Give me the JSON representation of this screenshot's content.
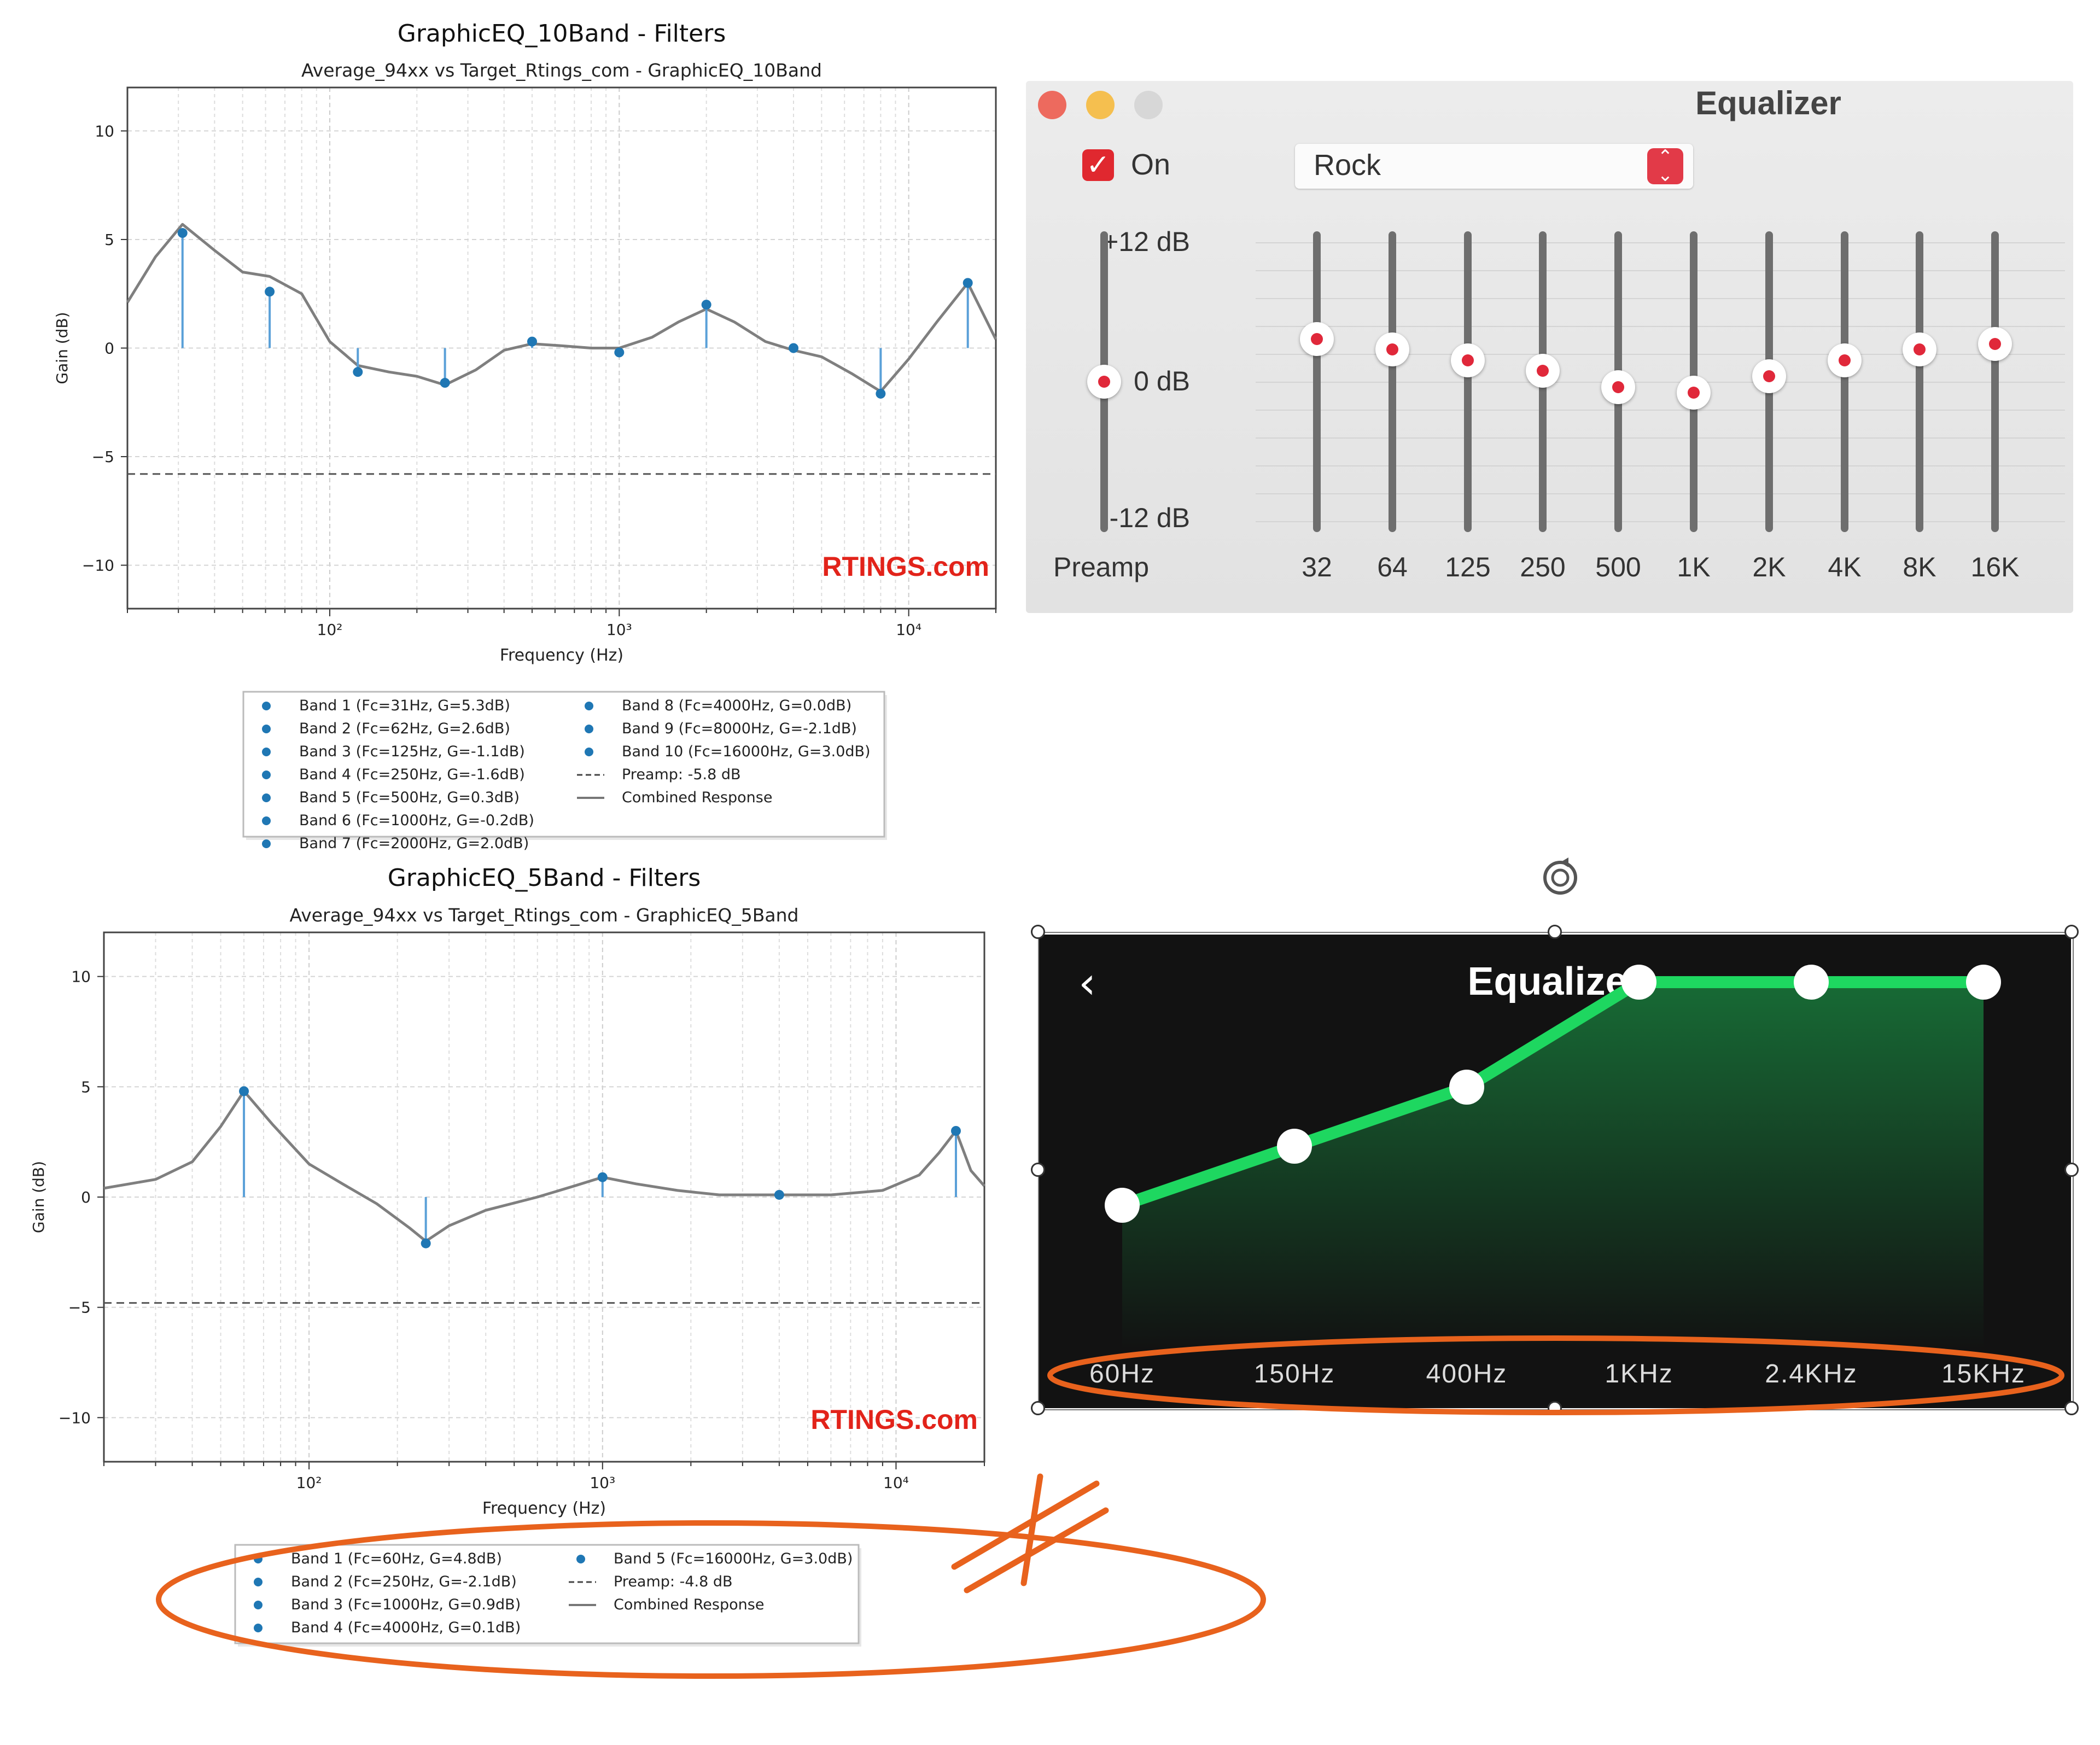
{
  "chart_data": [
    {
      "type": "line",
      "title": "GraphicEQ_10Band - Filters",
      "subtitle": "Average_94xx vs Target_Rtings_com - GraphicEQ_10Band",
      "xlabel": "Frequency (Hz)",
      "ylabel": "Gain (dB)",
      "xscale": "log",
      "xlim": [
        20,
        20000
      ],
      "ylim": [
        -12,
        12
      ],
      "xticks": [
        "10²",
        "10³",
        "10⁴"
      ],
      "yticks": [
        "10",
        "5",
        "0",
        "−5",
        "−10"
      ],
      "grid": true,
      "watermark": "RTINGS.com",
      "preamp": -5.8,
      "bands": [
        {
          "fc": 31,
          "g": 5.3,
          "label": "Band 1 (Fc=31Hz, G=5.3dB)"
        },
        {
          "fc": 62,
          "g": 2.6,
          "label": "Band 2 (Fc=62Hz, G=2.6dB)"
        },
        {
          "fc": 125,
          "g": -1.1,
          "label": "Band 3 (Fc=125Hz, G=-1.1dB)"
        },
        {
          "fc": 250,
          "g": -1.6,
          "label": "Band 4 (Fc=250Hz, G=-1.6dB)"
        },
        {
          "fc": 500,
          "g": 0.3,
          "label": "Band 5 (Fc=500Hz, G=0.3dB)"
        },
        {
          "fc": 1000,
          "g": -0.2,
          "label": "Band 6 (Fc=1000Hz, G=-0.2dB)"
        },
        {
          "fc": 2000,
          "g": 2.0,
          "label": "Band 7 (Fc=2000Hz, G=2.0dB)"
        },
        {
          "fc": 4000,
          "g": 0.0,
          "label": "Band 8 (Fc=4000Hz, G=0.0dB)"
        },
        {
          "fc": 8000,
          "g": -2.1,
          "label": "Band 9 (Fc=8000Hz, G=-2.1dB)"
        },
        {
          "fc": 16000,
          "g": 3.0,
          "label": "Band 10 (Fc=16000Hz, G=3.0dB)"
        }
      ],
      "combined_response": {
        "x": [
          20,
          25,
          31,
          40,
          50,
          62,
          80,
          100,
          125,
          160,
          200,
          250,
          320,
          400,
          500,
          640,
          800,
          1000,
          1300,
          1600,
          2000,
          2500,
          3200,
          4000,
          5000,
          6400,
          8000,
          10000,
          12500,
          16000,
          20000
        ],
        "y": [
          2.1,
          4.2,
          5.7,
          4.5,
          3.5,
          3.3,
          2.5,
          0.3,
          -0.8,
          -1.1,
          -1.3,
          -1.7,
          -1.0,
          -0.1,
          0.2,
          0.1,
          0.0,
          0.0,
          0.5,
          1.2,
          1.8,
          1.2,
          0.3,
          -0.1,
          -0.4,
          -1.2,
          -2.0,
          -0.5,
          1.2,
          3.0,
          0.4
        ]
      },
      "legend": {
        "preamp": "Preamp: -5.8 dB",
        "combined": "Combined Response"
      }
    },
    {
      "type": "line",
      "title": "GraphicEQ_5Band - Filters",
      "subtitle": "Average_94xx vs Target_Rtings_com - GraphicEQ_5Band",
      "xlabel": "Frequency (Hz)",
      "ylabel": "Gain (dB)",
      "xscale": "log",
      "xlim": [
        20,
        20000
      ],
      "ylim": [
        -12,
        12
      ],
      "xticks": [
        "10²",
        "10³",
        "10⁴"
      ],
      "yticks": [
        "10",
        "5",
        "0",
        "−5",
        "−10"
      ],
      "grid": true,
      "watermark": "RTINGS.com",
      "preamp": -4.8,
      "bands": [
        {
          "fc": 60,
          "g": 4.8,
          "label": "Band 1 (Fc=60Hz, G=4.8dB)"
        },
        {
          "fc": 250,
          "g": -2.1,
          "label": "Band 2 (Fc=250Hz, G=-2.1dB)"
        },
        {
          "fc": 1000,
          "g": 0.9,
          "label": "Band 3 (Fc=1000Hz, G=0.9dB)"
        },
        {
          "fc": 4000,
          "g": 0.1,
          "label": "Band 4 (Fc=4000Hz, G=0.1dB)"
        },
        {
          "fc": 16000,
          "g": 3.0,
          "label": "Band 5 (Fc=16000Hz, G=3.0dB)"
        }
      ],
      "combined_response": {
        "x": [
          20,
          30,
          40,
          50,
          60,
          75,
          100,
          130,
          170,
          220,
          250,
          300,
          400,
          600,
          800,
          1000,
          1300,
          1800,
          2500,
          4000,
          6000,
          9000,
          12000,
          14000,
          16000,
          18000,
          20000
        ],
        "y": [
          0.4,
          0.8,
          1.6,
          3.2,
          4.8,
          3.3,
          1.5,
          0.6,
          -0.3,
          -1.4,
          -2.0,
          -1.3,
          -0.6,
          0.0,
          0.5,
          0.9,
          0.6,
          0.3,
          0.1,
          0.1,
          0.1,
          0.3,
          1.0,
          2.0,
          3.0,
          1.2,
          0.5
        ]
      },
      "legend": {
        "preamp": "Preamp: -4.8 dB",
        "combined": "Combined Response"
      }
    },
    {
      "type": "line",
      "title": "Equalizer",
      "categories": [
        "60Hz",
        "150Hz",
        "400Hz",
        "1KHz",
        "2.4KHz",
        "15KHz"
      ],
      "values": [
        0.0,
        0.9,
        1.8,
        3.4,
        3.4,
        3.4
      ],
      "ylim": [
        -6,
        6
      ]
    }
  ],
  "mac_eq": {
    "title": "Equalizer",
    "on_label": "On",
    "on_checked": true,
    "preset": "Rock",
    "db_top": "+12 dB",
    "db_mid": "0 dB",
    "db_bottom": "-12 dB",
    "preamp_label": "Preamp",
    "preamp_value_db": 0,
    "bands": [
      {
        "label": "32",
        "db": 4
      },
      {
        "label": "64",
        "db": 3
      },
      {
        "label": "125",
        "db": 2
      },
      {
        "label": "250",
        "db": 1
      },
      {
        "label": "500",
        "db": -0.5
      },
      {
        "label": "1K",
        "db": -1
      },
      {
        "label": "2K",
        "db": 0.5
      },
      {
        "label": "4K",
        "db": 2
      },
      {
        "label": "8K",
        "db": 3
      },
      {
        "label": "16K",
        "db": 3.5
      }
    ],
    "colors": {
      "close": "#ed6a5e",
      "minimize": "#f5bf4f",
      "zoom": "#d7d7d7",
      "accent": "#e0283a"
    }
  },
  "mobile_eq": {
    "title": "Equalizer",
    "back_icon": "chevron-left-icon",
    "rotate_icon": "rotate-icon",
    "accent": "#1ed760"
  },
  "annotation": {
    "color": "#e8621d",
    "not_equal_mark": "≠"
  }
}
